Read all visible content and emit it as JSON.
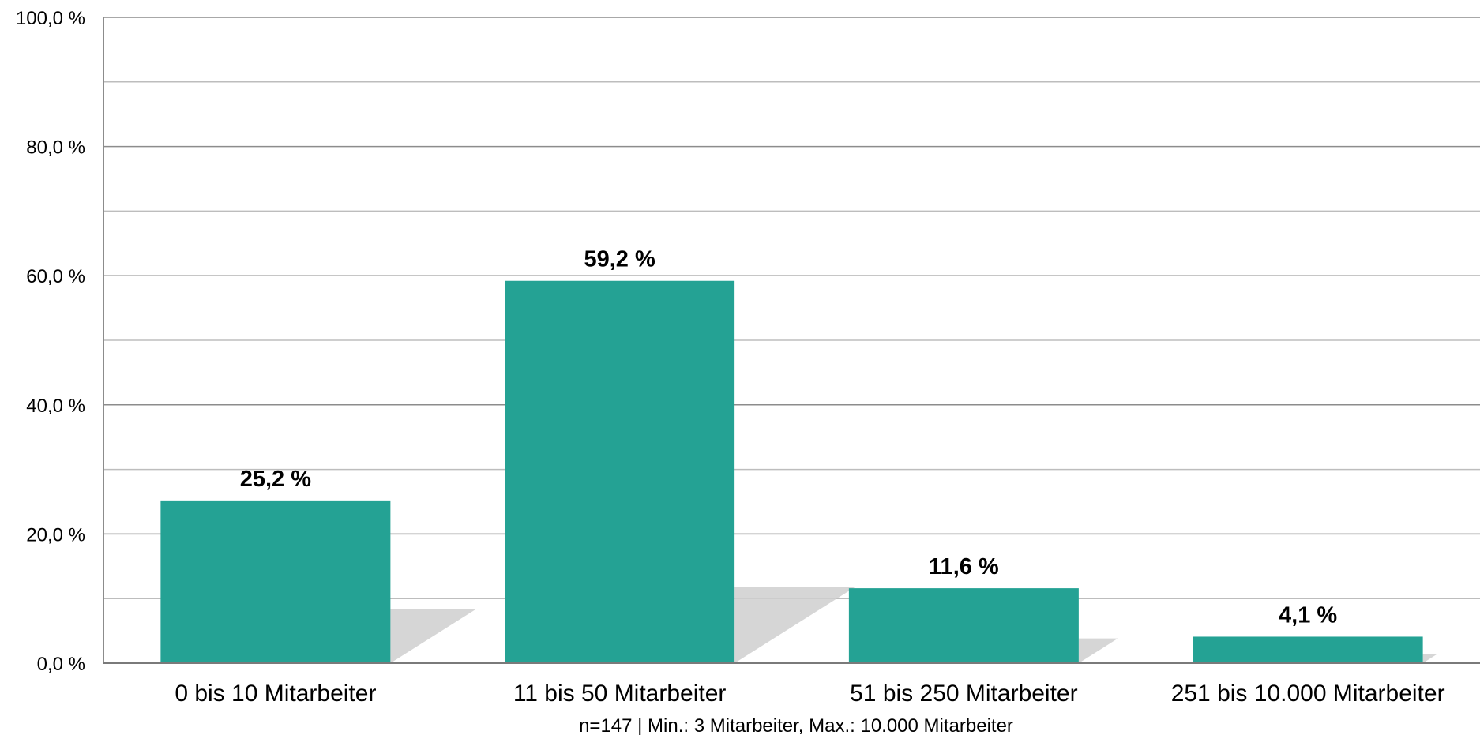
{
  "chart_data": {
    "type": "bar",
    "categories": [
      "0 bis 10 Mitarbeiter",
      "11 bis 50 Mitarbeiter",
      "51 bis 250 Mitarbeiter",
      "251 bis 10.000 Mitarbeiter"
    ],
    "values": [
      25.2,
      59.2,
      11.6,
      4.1
    ],
    "value_labels": [
      "25,2 %",
      "59,2 %",
      "11,6 %",
      "4,1 %"
    ],
    "ylim": [
      0,
      100
    ],
    "y_ticks": [
      0,
      20,
      40,
      60,
      80,
      100
    ],
    "y_tick_labels": [
      "0,0 %",
      "20,0 %",
      "40,0 %",
      "60,0 %",
      "80,0 %",
      "100,0 %"
    ],
    "grid": true,
    "note": "n=147 | Min.: 3 Mitarbeiter, Max.: 10.000 Mitarbeiter",
    "colors": {
      "bar": "#24a294",
      "shadow": "#cfcfcf",
      "grid_major": "#8c8c8c",
      "grid_minor": "#bdbdbd"
    }
  }
}
